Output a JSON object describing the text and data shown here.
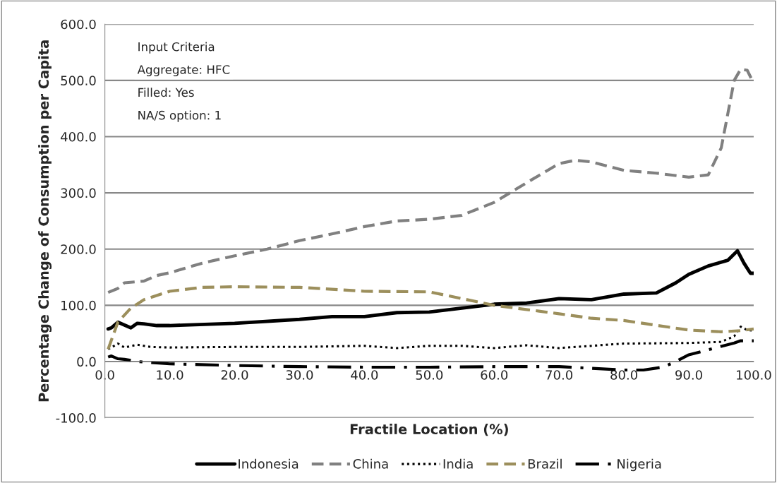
{
  "chart_data": {
    "type": "line",
    "xlabel": "Fractile Location (%)",
    "ylabel": "Percentage Change of Consumption per Capita",
    "annotations": [
      "Input Criteria",
      "Aggregate: HFC",
      "Filled: Yes",
      "NA/S option: 1"
    ],
    "xlim": [
      0,
      100
    ],
    "xticks": [
      {
        "value": 0,
        "label": "0.0"
      },
      {
        "value": 10,
        "label": "10.0"
      },
      {
        "value": 20,
        "label": "20.0"
      },
      {
        "value": 30,
        "label": "30.0"
      },
      {
        "value": 40,
        "label": "40.0"
      },
      {
        "value": 50,
        "label": "50.0"
      },
      {
        "value": 60,
        "label": "60.0"
      },
      {
        "value": 70,
        "label": "70.0"
      },
      {
        "value": 80,
        "label": "80.0"
      },
      {
        "value": 90,
        "label": "90.0"
      },
      {
        "value": 100,
        "label": "100.0"
      }
    ],
    "ylim": [
      -100,
      600
    ],
    "yticks": [
      {
        "value": -100,
        "label": "-100.0"
      },
      {
        "value": 0,
        "label": "0.0"
      },
      {
        "value": 100,
        "label": "100.0"
      },
      {
        "value": 200,
        "label": "200.0"
      },
      {
        "value": 300,
        "label": "300.0"
      },
      {
        "value": 400,
        "label": "400.0"
      },
      {
        "value": 500,
        "label": "500.0"
      },
      {
        "value": 600,
        "label": "600.0"
      }
    ],
    "grid": "y",
    "legend": "bottom",
    "marker": "none",
    "series": [
      {
        "name": "Indonesia",
        "color": "#000000",
        "line_style": "solid",
        "x": [
          0.5,
          1,
          2,
          3,
          4,
          5,
          6,
          8,
          10,
          20,
          30,
          35,
          40,
          45,
          50,
          55,
          60,
          65,
          70,
          75,
          80,
          85,
          88,
          90,
          93,
          96,
          97.5,
          98.5,
          99.5,
          100
        ],
        "values": [
          58,
          60,
          70,
          65,
          60,
          68,
          67,
          64,
          64,
          68,
          75,
          80,
          80,
          87,
          88,
          95,
          102,
          104,
          112,
          110,
          120,
          122,
          140,
          155,
          170,
          180,
          197,
          175,
          157,
          157
        ]
      },
      {
        "name": "China",
        "color": "#808080",
        "line_style": "dashed",
        "x": [
          0.5,
          2,
          3,
          5,
          6,
          8,
          10,
          15,
          20,
          25,
          30,
          35,
          40,
          45,
          50,
          55,
          60,
          65,
          70,
          72.5,
          75,
          80,
          85,
          90,
          93,
          95,
          96,
          97,
          98,
          99,
          100
        ],
        "values": [
          123,
          130,
          140,
          142,
          143,
          153,
          158,
          175,
          188,
          200,
          215,
          227,
          240,
          250,
          253,
          260,
          283,
          318,
          352,
          358,
          355,
          340,
          335,
          328,
          332,
          380,
          440,
          500,
          520,
          518,
          495
        ]
      },
      {
        "name": "India",
        "color": "#000000",
        "line_style": "dotted",
        "x": [
          0.5,
          1,
          2,
          3,
          5,
          7,
          10,
          20,
          30,
          40,
          45,
          50,
          55,
          60,
          65,
          70,
          80,
          90,
          95,
          97,
          98,
          99,
          100
        ],
        "values": [
          22,
          25,
          32,
          25,
          30,
          26,
          25,
          26,
          26,
          28,
          24,
          28,
          28,
          24,
          29,
          24,
          32,
          33,
          35,
          45,
          62,
          56,
          55
        ]
      },
      {
        "name": "Brazil",
        "color": "#9c8f5c",
        "line_style": "dashed",
        "x": [
          0.5,
          2,
          4,
          6,
          10,
          15,
          20,
          30,
          40,
          50,
          55,
          60,
          70,
          75,
          80,
          90,
          95,
          98,
          100
        ],
        "values": [
          22,
          70,
          95,
          110,
          125,
          132,
          133,
          132,
          125,
          124,
          112,
          100,
          85,
          77,
          73,
          56,
          53,
          55,
          58
        ]
      },
      {
        "name": "Nigeria",
        "color": "#000000",
        "line_style": "dashdot",
        "x": [
          0.5,
          1,
          2,
          3,
          5,
          10,
          20,
          30,
          40,
          50,
          60,
          70,
          80,
          83,
          86,
          88,
          90,
          95,
          97,
          98,
          100
        ],
        "values": [
          8,
          10,
          5,
          4,
          0,
          -4,
          -7,
          -9,
          -10,
          -10,
          -9,
          -9,
          -15,
          -15,
          -10,
          0,
          12,
          27,
          33,
          37,
          37
        ]
      }
    ]
  }
}
